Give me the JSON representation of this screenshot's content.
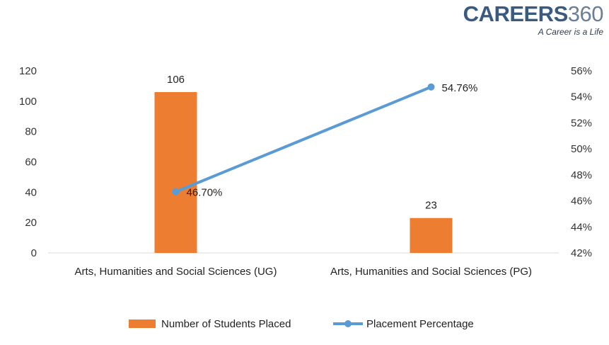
{
  "logo": {
    "brand": "CAREERS",
    "number": "360",
    "tagline": "A Career is a Life"
  },
  "colors": {
    "bar": "#ED7D31",
    "line": "#5B9BD5",
    "axis": "#D9D9D9"
  },
  "chart_data": {
    "type": "bar+line",
    "categories": [
      "Arts, Humanities and Social Sciences (UG)",
      "Arts, Humanities and Social Sciences (PG)"
    ],
    "series": [
      {
        "name": "Number of Students Placed",
        "type": "bar",
        "axis": "left",
        "values": [
          106,
          23
        ],
        "labels": [
          "106",
          "23"
        ]
      },
      {
        "name": "Placement Percentage",
        "type": "line",
        "axis": "right",
        "values": [
          46.7,
          54.76
        ],
        "labels": [
          "46.70%",
          "54.76%"
        ]
      }
    ],
    "y_left": {
      "min": 0,
      "max": 120,
      "ticks": [
        "0",
        "20",
        "40",
        "60",
        "80",
        "100",
        "120"
      ]
    },
    "y_right": {
      "min": 42,
      "max": 56,
      "ticks": [
        "42%",
        "44%",
        "46%",
        "48%",
        "50%",
        "52%",
        "54%",
        "56%"
      ]
    },
    "legend": "bottom",
    "grid": false
  }
}
